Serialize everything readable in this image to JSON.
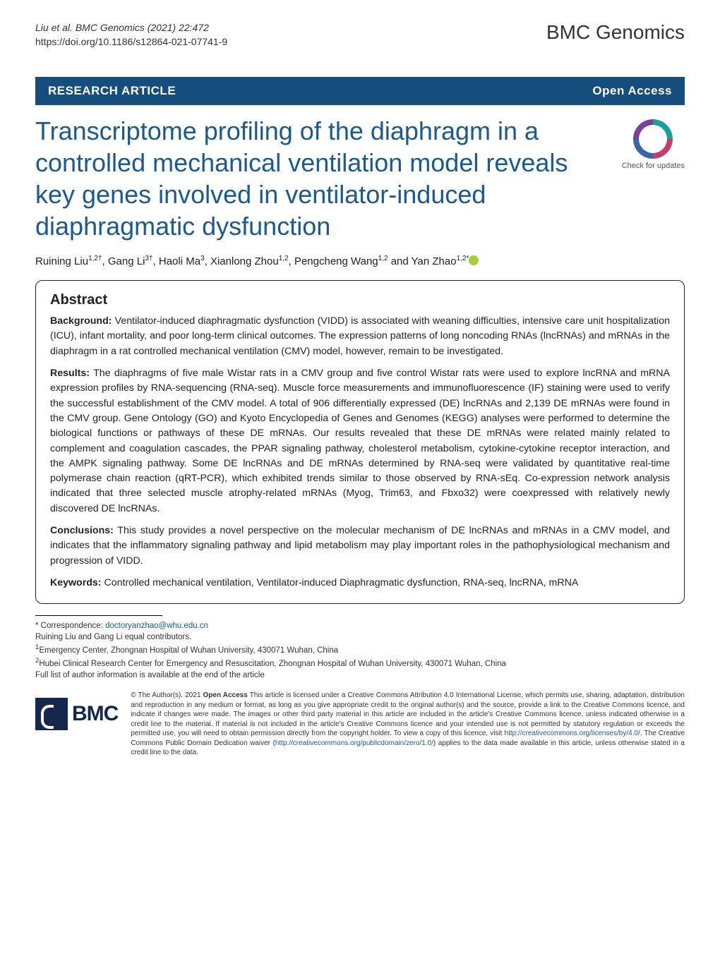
{
  "header": {
    "citation_line1": "Liu et al. BMC Genomics          (2021) 22:472",
    "citation_line2": "https://doi.org/10.1186/s12864-021-07741-9",
    "journal_name": "BMC Genomics"
  },
  "bar": {
    "article_type": "RESEARCH ARTICLE",
    "open_access": "Open Access"
  },
  "title": "Transcriptome profiling of the diaphragm in a controlled mechanical ventilation model reveals key genes involved in ventilator-induced diaphragmatic dysfunction",
  "check_updates": "Check for updates",
  "authors": "Ruining Liu1,2†, Gang Li3†, Haoli Ma3, Xianlong Zhou1,2, Pengcheng Wang1,2 and Yan Zhao1,2*",
  "abstract": {
    "heading": "Abstract",
    "background_label": "Background:",
    "background_text": " Ventilator-induced diaphragmatic dysfunction (VIDD) is associated with weaning difficulties, intensive care unit hospitalization (ICU), infant mortality, and poor long-term clinical outcomes. The expression patterns of long noncoding RNAs (lncRNAs) and mRNAs in the diaphragm in a rat controlled mechanical ventilation (CMV) model, however, remain to be investigated.",
    "results_label": "Results:",
    "results_text": " The diaphragms of five male Wistar rats in a CMV group and five control Wistar rats were used to explore lncRNA and mRNA expression profiles by RNA-sequencing (RNA-seq). Muscle force measurements and immunofluorescence (IF) staining were used to verify the successful establishment of the CMV model. A total of 906 differentially expressed (DE) lncRNAs and 2,139 DE mRNAs were found in the CMV group. Gene Ontology (GO) and Kyoto Encyclopedia of Genes and Genomes (KEGG) analyses were performed to determine the biological functions or pathways of these DE mRNAs. Our results revealed that these DE mRNAs were related mainly related to complement and coagulation cascades, the PPAR signaling pathway, cholesterol metabolism, cytokine-cytokine receptor interaction, and the AMPK signaling pathway. Some DE lncRNAs and DE mRNAs determined by RNA-seq were validated by quantitative real-time polymerase chain reaction (qRT-PCR), which exhibited trends similar to those observed by RNA-sEq. Co-expression network analysis indicated that three selected muscle atrophy-related mRNAs (Myog, Trim63, and Fbxo32) were coexpressed with relatively newly discovered DE lncRNAs.",
    "conclusions_label": "Conclusions:",
    "conclusions_text": " This study provides a novel perspective on the molecular mechanism of DE lncRNAs and mRNAs in a CMV model, and indicates that the inflammatory signaling pathway and lipid metabolism may play important roles in the pathophysiological mechanism and progression of VIDD.",
    "keywords_label": "Keywords:",
    "keywords_text": " Controlled mechanical ventilation, Ventilator-induced Diaphragmatic dysfunction, RNA-seq, lncRNA, mRNA"
  },
  "footer": {
    "corr_label": "* Correspondence: ",
    "corr_email": "doctoryanzhao@whu.edu.cn",
    "equal": "Ruining Liu and Gang Li equal contributors.",
    "aff1": "1Emergency Center, Zhongnan Hospital of Wuhan University, 430071 Wuhan, China",
    "aff2": "2Hubei Clinical Research Center for Emergency and Resuscitation, Zhongnan Hospital of Wuhan University, 430071 Wuhan, China",
    "full_list": "Full list of author information is available at the end of the article"
  },
  "license": {
    "bmc": "BMC",
    "text_prefix": "© The Author(s). 2021 ",
    "open_access_bold": "Open Access",
    "text_body": " This article is licensed under a Creative Commons Attribution 4.0 International License, which permits use, sharing, adaptation, distribution and reproduction in any medium or format, as long as you give appropriate credit to the original author(s) and the source, provide a link to the Creative Commons licence, and indicate if changes were made. The images or other third party material in this article are included in the article's Creative Commons licence, unless indicated otherwise in a credit line to the material. If material is not included in the article's Creative Commons licence and your intended use is not permitted by statutory regulation or exceeds the permitted use, you will need to obtain permission directly from the copyright holder. To view a copy of this licence, visit ",
    "link1": "http://creativecommons.org/licenses/by/4.0/",
    "text_mid": ". The Creative Commons Public Domain Dedication waiver (",
    "link2": "http://creativecommons.org/publicdomain/zero/1.0/",
    "text_end": ") applies to the data made available in this article, unless otherwise stated in a credit line to the data."
  },
  "colors": {
    "bar_bg": "#154e7c",
    "title_color": "#1a5a8f",
    "link_color": "#1a5a8f",
    "bmc_navy": "#13284c",
    "orcid_green": "#a6ce39"
  }
}
